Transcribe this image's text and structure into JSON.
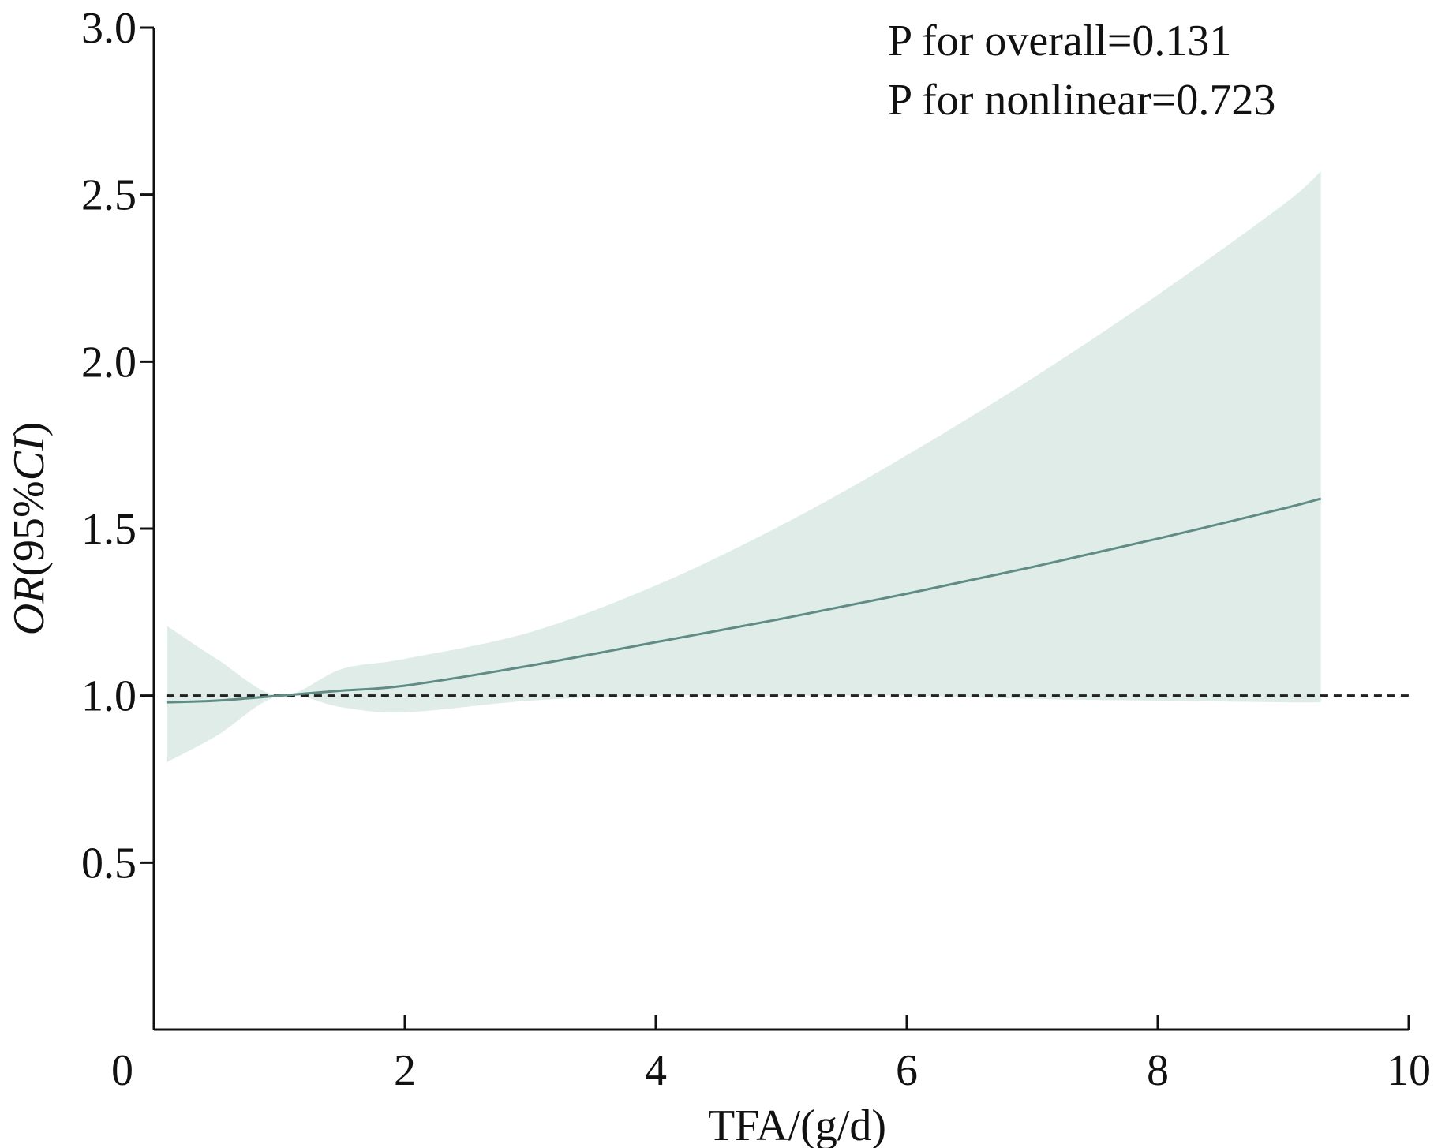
{
  "chart_data": {
    "type": "line",
    "xlabel": "TFA/(g/d)",
    "ylabel_italic_1": "OR",
    "ylabel_mid": "(95%",
    "ylabel_italic_2": "CI",
    "ylabel_end": ")",
    "xlim": [
      0,
      10
    ],
    "ylim": [
      0,
      3.0
    ],
    "x_ticks": [
      {
        "value": 0,
        "label": "0"
      },
      {
        "value": 2,
        "label": "2"
      },
      {
        "value": 4,
        "label": "4"
      },
      {
        "value": 6,
        "label": "6"
      },
      {
        "value": 8,
        "label": "8"
      },
      {
        "value": 10,
        "label": "10"
      }
    ],
    "y_ticks": [
      {
        "value": 0.5,
        "label": "0.5"
      },
      {
        "value": 1.0,
        "label": "1.0"
      },
      {
        "value": 1.5,
        "label": "1.5"
      },
      {
        "value": 2.0,
        "label": "2.0"
      },
      {
        "value": 2.5,
        "label": "2.5"
      },
      {
        "value": 3.0,
        "label": "3.0"
      }
    ],
    "reference_line": {
      "y": 1.0,
      "style": "dashed",
      "color": "#222222"
    },
    "annotations": {
      "p_overall": "P for overall=0.131",
      "p_nonlinear": "P for nonlinear=0.723"
    },
    "series": [
      {
        "estimate": {
          "x": [
            0.1,
            0.5,
            1.0,
            1.5,
            2.0,
            3.0,
            4.0,
            5.0,
            6.0,
            7.0,
            8.0,
            9.0,
            9.3
          ],
          "y": [
            0.98,
            0.985,
            1.0,
            1.015,
            1.03,
            1.09,
            1.16,
            1.23,
            1.305,
            1.385,
            1.47,
            1.56,
            1.59
          ]
        },
        "ci_upper": {
          "x": [
            0.1,
            0.5,
            1.0,
            1.5,
            2.0,
            3.0,
            4.0,
            5.0,
            6.0,
            7.0,
            8.0,
            9.0,
            9.3
          ],
          "y": [
            1.21,
            1.11,
            1.0,
            1.08,
            1.11,
            1.19,
            1.33,
            1.51,
            1.72,
            1.95,
            2.2,
            2.47,
            2.57
          ]
        },
        "ci_lower": {
          "x": [
            0.1,
            0.5,
            1.0,
            1.5,
            2.0,
            3.0,
            4.0,
            5.0,
            6.0,
            7.0,
            8.0,
            9.0,
            9.3
          ],
          "y": [
            0.8,
            0.88,
            1.0,
            0.965,
            0.95,
            0.985,
            1.0,
            1.0,
            1.0,
            0.99,
            0.985,
            0.98,
            0.98
          ]
        }
      }
    ],
    "line_color": "#5f8c85",
    "band_color": "#dfece7",
    "grid": false
  }
}
